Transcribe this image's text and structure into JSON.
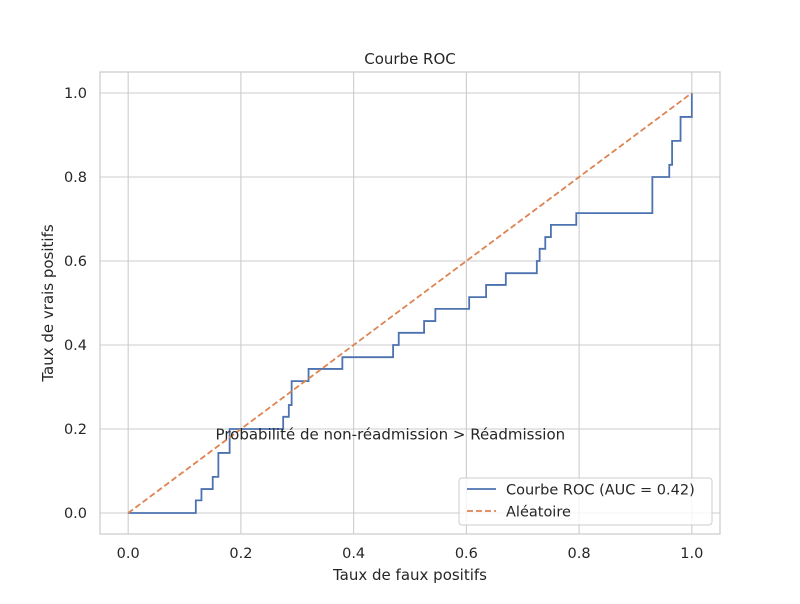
{
  "chart_data": {
    "type": "line",
    "title": "Courbe ROC",
    "xlabel": "Taux de faux positifs",
    "ylabel": "Taux de vrais positifs",
    "xlim": [
      -0.05,
      1.05
    ],
    "ylim": [
      -0.05,
      1.05
    ],
    "xticks": [
      0.0,
      0.2,
      0.4,
      0.6,
      0.8,
      1.0
    ],
    "yticks": [
      0.0,
      0.2,
      0.4,
      0.6,
      0.8,
      1.0
    ],
    "xtick_labels": [
      "0.0",
      "0.2",
      "0.4",
      "0.6",
      "0.8",
      "1.0"
    ],
    "ytick_labels": [
      "0.0",
      "0.2",
      "0.4",
      "0.6",
      "0.8",
      "1.0"
    ],
    "grid": true,
    "legend_position": "lower-right",
    "annotation": {
      "text": "Probabilité de non-réadmission > Réadmission",
      "x": 0.155,
      "y": 0.175
    },
    "series": [
      {
        "name": "Courbe ROC (AUC = 0.42)",
        "style": "solid-step",
        "color": "#4c72b0",
        "x": [
          0.0,
          0.12,
          0.12,
          0.13,
          0.13,
          0.15,
          0.15,
          0.16,
          0.16,
          0.18,
          0.18,
          0.275,
          0.275,
          0.285,
          0.285,
          0.29,
          0.29,
          0.32,
          0.32,
          0.38,
          0.38,
          0.47,
          0.47,
          0.48,
          0.48,
          0.525,
          0.525,
          0.545,
          0.545,
          0.605,
          0.605,
          0.635,
          0.635,
          0.67,
          0.67,
          0.725,
          0.725,
          0.73,
          0.73,
          0.74,
          0.74,
          0.75,
          0.75,
          0.755,
          0.755,
          0.795,
          0.795,
          0.93,
          0.93,
          0.96,
          0.96,
          0.965,
          0.965,
          0.98,
          0.98,
          1.0,
          1.0
        ],
        "y": [
          0.0,
          0.0,
          0.03,
          0.03,
          0.057,
          0.057,
          0.086,
          0.086,
          0.143,
          0.143,
          0.2,
          0.2,
          0.229,
          0.229,
          0.257,
          0.257,
          0.314,
          0.314,
          0.343,
          0.343,
          0.371,
          0.371,
          0.4,
          0.4,
          0.429,
          0.429,
          0.457,
          0.457,
          0.486,
          0.486,
          0.514,
          0.514,
          0.543,
          0.543,
          0.571,
          0.571,
          0.6,
          0.6,
          0.629,
          0.629,
          0.657,
          0.657,
          0.686,
          0.686,
          0.686,
          0.686,
          0.714,
          0.714,
          0.8,
          0.8,
          0.829,
          0.829,
          0.886,
          0.886,
          0.943,
          0.943,
          1.0
        ]
      },
      {
        "name": "Aléatoire",
        "style": "dashed",
        "color": "#dd8452",
        "x": [
          0.0,
          1.0
        ],
        "y": [
          0.0,
          1.0
        ]
      }
    ]
  }
}
